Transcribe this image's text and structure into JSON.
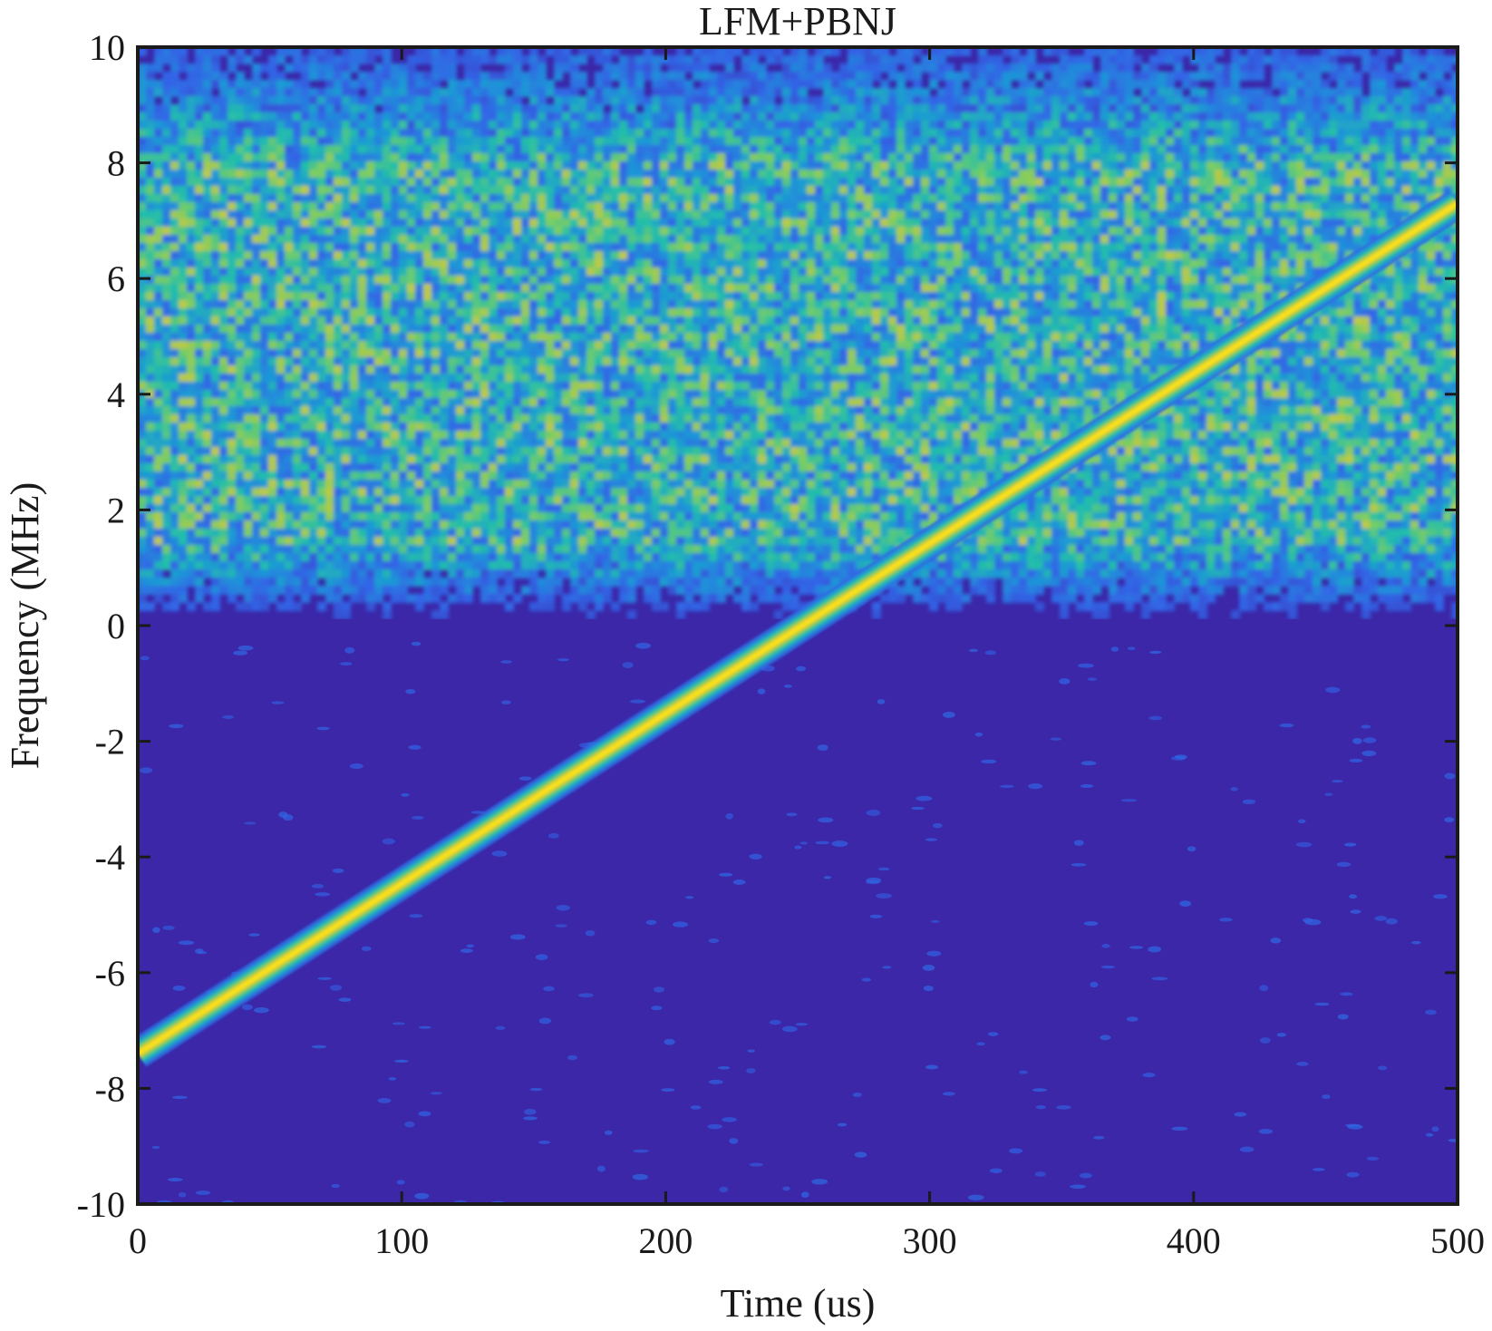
{
  "chart_data": {
    "type": "heatmap",
    "subtype": "spectrogram",
    "title": "LFM+PBNJ",
    "xlabel": "Time (us)",
    "ylabel": "Frequency (MHz)",
    "xlim": [
      0,
      500
    ],
    "ylim": [
      -10,
      10
    ],
    "xticks": [
      0,
      100,
      200,
      300,
      400,
      500
    ],
    "yticks": [
      -10,
      -8,
      -6,
      -4,
      -2,
      0,
      2,
      4,
      6,
      8,
      10
    ],
    "xtick_labels": [
      "0",
      "100",
      "200",
      "300",
      "400",
      "500"
    ],
    "ytick_labels": [
      "-10",
      "-8",
      "-6",
      "-4",
      "-2",
      "0",
      "2",
      "4",
      "6",
      "8",
      "10"
    ],
    "colormap": "parula",
    "colors": {
      "background_low": "#3b27a8",
      "noise_mid": "#2f8fd8",
      "noise_high": "#2fc0a0",
      "peak": "#f4e01c"
    },
    "components": {
      "lfm": {
        "type": "linear-chirp",
        "start": {
          "time": 0,
          "frequency": -7.4
        },
        "end": {
          "time": 500,
          "frequency": 7.3
        }
      },
      "pbnj": {
        "type": "partial-band-noise-jamming",
        "band_low": 0.5,
        "band_high": 8.5,
        "strong_low": 1.5,
        "strong_high": 8.0
      }
    },
    "grid": false
  }
}
